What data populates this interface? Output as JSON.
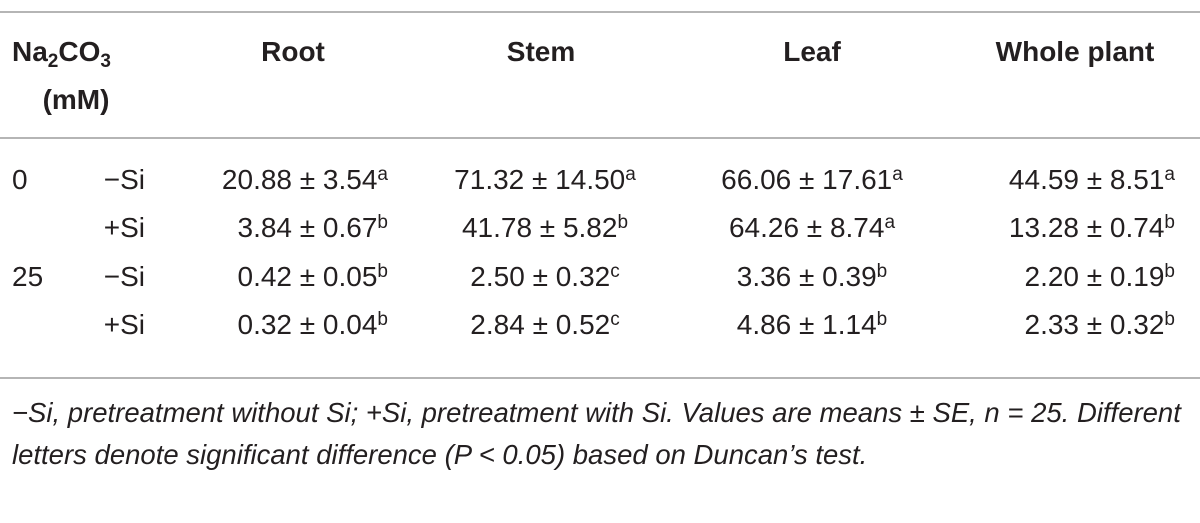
{
  "table": {
    "factor_label": [
      "Na",
      "2",
      "CO",
      "3"
    ],
    "factor_unit": "(mM)",
    "columns": [
      "Root",
      "Stem",
      "Leaf",
      "Whole plant"
    ],
    "rows": [
      {
        "group": "0",
        "treatment": "−Si",
        "cells": [
          {
            "value": "20.88 ± 3.54",
            "letter": "a"
          },
          {
            "value": "71.32 ± 14.50",
            "letter": "a"
          },
          {
            "value": "66.06 ± 17.61",
            "letter": "a"
          },
          {
            "value": "44.59 ± 8.51",
            "letter": "a"
          }
        ]
      },
      {
        "treatment": "+Si",
        "cells": [
          {
            "value": "3.84 ± 0.67",
            "letter": "b"
          },
          {
            "value": "41.78 ± 5.82",
            "letter": "b"
          },
          {
            "value": "64.26 ± 8.74",
            "letter": "a"
          },
          {
            "value": "13.28 ± 0.74",
            "letter": "b"
          }
        ]
      },
      {
        "group": "25",
        "treatment": "−Si",
        "cells": [
          {
            "value": "0.42 ± 0.05",
            "letter": "b"
          },
          {
            "value": "2.50 ± 0.32",
            "letter": "c"
          },
          {
            "value": "3.36 ± 0.39",
            "letter": "b"
          },
          {
            "value": "2.20 ± 0.19",
            "letter": "b"
          }
        ]
      },
      {
        "treatment": "+Si",
        "cells": [
          {
            "value": "0.32 ± 0.04",
            "letter": "b"
          },
          {
            "value": "2.84 ± 0.52",
            "letter": "c"
          },
          {
            "value": "4.86 ± 1.14",
            "letter": "b"
          },
          {
            "value": "2.33 ± 0.32",
            "letter": "b"
          }
        ]
      }
    ],
    "footnote": "−Si, pretreatment without Si; +Si, pretreatment with Si. Values are means ± SE, n = 25. Different letters denote significant difference (P < 0.05) based on Duncan’s test."
  }
}
